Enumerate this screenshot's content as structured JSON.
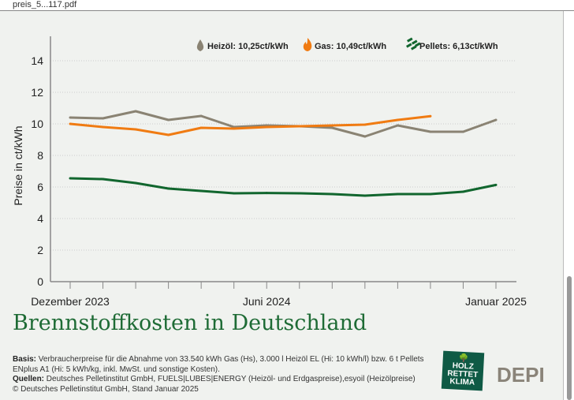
{
  "viewer": {
    "filename": "preis_5...117.pdf"
  },
  "chart_data": {
    "type": "line",
    "title": "Brennstoffkosten in Deutschland",
    "ylabel": "Preise in ct/kWh",
    "ylim": [
      0,
      14
    ],
    "yticks": [
      0,
      2,
      4,
      6,
      8,
      10,
      12,
      14
    ],
    "x": [
      "2023-12",
      "2024-01",
      "2024-02",
      "2024-03",
      "2024-04",
      "2024-05",
      "2024-06",
      "2024-07",
      "2024-08",
      "2024-09",
      "2024-10",
      "2024-11",
      "2024-12",
      "2025-01"
    ],
    "xtick_labels": [
      {
        "x": "2023-12",
        "label": "Dezember 2023"
      },
      {
        "x": "2024-06",
        "label": "Juni 2024"
      },
      {
        "x": "2025-01",
        "label": "Januar 2025"
      }
    ],
    "grid": "horizontal-dotted",
    "legend_placement": "top",
    "series": [
      {
        "name": "Heizöl: 10,25ct/kWh",
        "color": "#8a8373",
        "icon": "oil-drop-icon",
        "values": [
          10.4,
          10.35,
          10.8,
          10.25,
          10.5,
          9.8,
          9.9,
          9.85,
          9.75,
          9.2,
          9.9,
          9.5,
          9.5,
          10.25
        ]
      },
      {
        "name": "Gas: 10,49ct/kWh",
        "color": "#f07b12",
        "icon": "flame-icon",
        "values": [
          10.0,
          9.8,
          9.65,
          9.3,
          9.75,
          9.7,
          9.8,
          9.85,
          9.9,
          9.95,
          10.25,
          10.49,
          null,
          null
        ]
      },
      {
        "name": "Pellets: 6,13ct/kWh",
        "color": "#11662e",
        "icon": "pellets-icon",
        "values": [
          6.55,
          6.5,
          6.25,
          5.9,
          5.75,
          5.6,
          5.62,
          5.6,
          5.55,
          5.45,
          5.55,
          5.55,
          5.7,
          6.13
        ]
      }
    ]
  },
  "footer": {
    "basis_label": "Basis:",
    "basis_text": "Verbraucherpreise für die Abnahme von 33.540 kWh Gas (Hs), 3.000 l Heizöl EL (Hi: 10 kWh/l) bzw. 6 t Pellets ENplus A1 (Hi: 5 kWh/kg, inkl. MwSt. und sonstige Kosten).",
    "quellen_label": "Quellen:",
    "quellen_text": "Deutsches Pelletinstitut GmbH, FUELS|LUBES|ENERGY (Heizöl- und Erdgaspreise),esyoil (Heizölpreise)",
    "copyright": "© Deutsches Pelletinstitut GmbH, Stand Januar 2025"
  },
  "logos": {
    "holz": "HOLZ RETTET KLIMA",
    "depi": "DEPI"
  }
}
